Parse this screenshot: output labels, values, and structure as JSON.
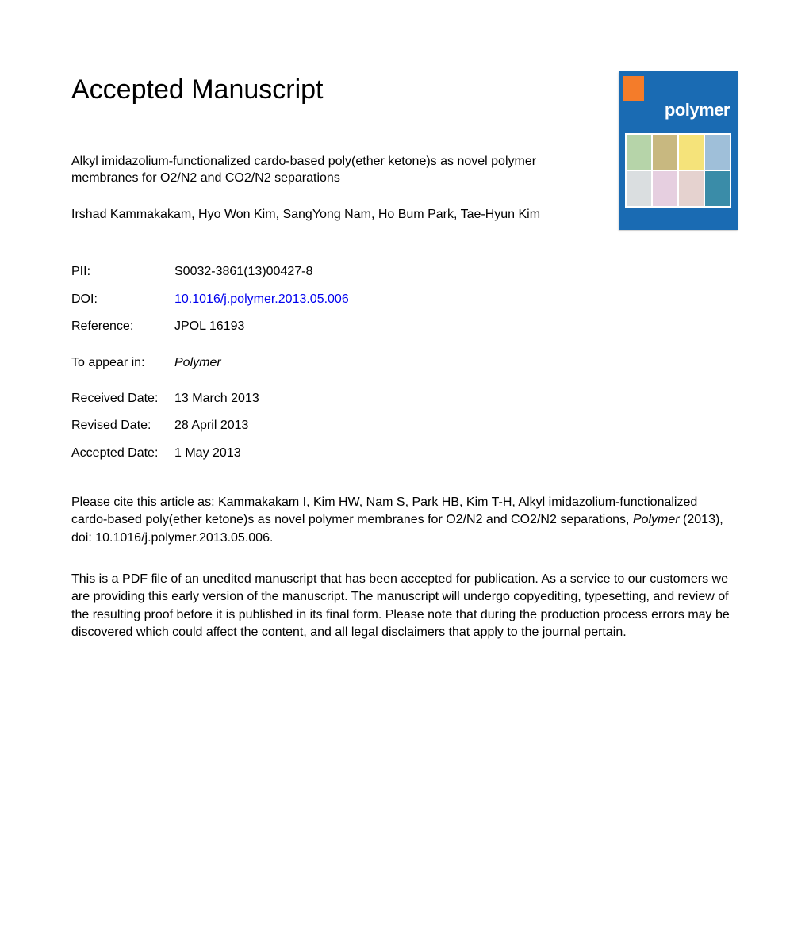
{
  "heading": "Accepted Manuscript",
  "title": "Alkyl imidazolium-functionalized cardo-based poly(ether ketone)s as novel polymer membranes for O2/N2 and CO2/N2 separations",
  "authors": "Irshad Kammakakam, Hyo Won Kim, SangYong Nam, Ho Bum Park, Tae-Hyun Kim",
  "journal_cover": {
    "brand": "polymer",
    "brand_color": "#1a6bb3",
    "tab_color": "#f47c2a"
  },
  "meta": {
    "pii_label": "PII:",
    "pii": "S0032-3861(13)00427-8",
    "doi_label": "DOI:",
    "doi": "10.1016/j.polymer.2013.05.006",
    "ref_label": "Reference:",
    "ref": "JPOL 16193"
  },
  "appear": {
    "label": "To appear in:",
    "journal": "Polymer"
  },
  "dates": {
    "received_label": "Received Date:",
    "received": "13 March 2013",
    "revised_label": "Revised Date:",
    "revised": "28 April 2013",
    "accepted_label": "Accepted Date:",
    "accepted": "1 May 2013"
  },
  "citation_prefix": "Please cite this article as: Kammakakam I, Kim HW, Nam S, Park HB, Kim T-H, Alkyl imidazolium-functionalized cardo-based poly(ether ketone)s as novel polymer membranes for O2/N2 and CO2/N2 separations, ",
  "citation_italic": "Polymer",
  "citation_suffix": " (2013), doi: 10.1016/j.polymer.2013.05.006.",
  "disclaimer": "This is a PDF file of an unedited manuscript that has been accepted for publication. As a service to our customers we are providing this early version of the manuscript. The manuscript will undergo copyediting, typesetting, and review of the resulting proof before it is published in its final form. Please note that during the production process errors may be discovered which could affect the content, and all legal disclaimers that apply to the journal pertain.",
  "colors": {
    "link": "#0000ee",
    "text": "#000000",
    "background": "#ffffff"
  },
  "typography": {
    "heading_fontsize_pt": 26,
    "body_fontsize_pt": 12,
    "font_family": "Arial"
  }
}
